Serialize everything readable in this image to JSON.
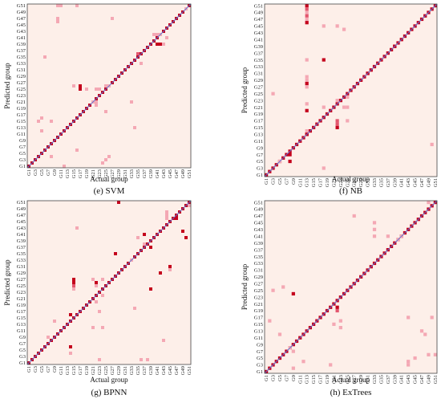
{
  "colors": {
    "background": "#fdefe9",
    "diagonal_line": "#5a73d6",
    "frame": "#444444",
    "cell_light": "#f4a8b4",
    "cell_mid": "#e3566e",
    "cell_dark": "#c4001c"
  },
  "chart_data": [
    {
      "type": "heatmap",
      "caption": "(e) SVM",
      "xlabel": "Actual group",
      "ylabel": "Predicted group",
      "groups": 51,
      "x_tick_labels": [
        "G1",
        "G3",
        "G5",
        "G7",
        "G9",
        "G11",
        "G13",
        "G15",
        "G17",
        "G19",
        "G21",
        "G23",
        "G25",
        "G27",
        "G29",
        "G31",
        "G33",
        "G35",
        "G37",
        "G39",
        "G41",
        "G43",
        "G45",
        "G47",
        "G49",
        "G51"
      ],
      "y_tick_labels": [
        "G1",
        "G3",
        "G5",
        "G7",
        "G9",
        "G11",
        "G13",
        "G15",
        "G17",
        "G19",
        "G21",
        "G23",
        "G25",
        "G27",
        "G29",
        "G31",
        "G33",
        "G35",
        "G37",
        "G39",
        "G41",
        "G43",
        "G45",
        "G47",
        "G49",
        "G51"
      ],
      "off_diagonal": [
        {
          "actual": 10,
          "predicted": 51,
          "level": 1
        },
        {
          "actual": 11,
          "predicted": 51,
          "level": 1
        },
        {
          "actual": 10,
          "predicted": 47,
          "level": 1
        },
        {
          "actual": 10,
          "predicted": 46,
          "level": 1
        },
        {
          "actual": 16,
          "predicted": 51,
          "level": 1
        },
        {
          "actual": 27,
          "predicted": 47,
          "level": 1
        },
        {
          "actual": 6,
          "predicted": 35,
          "level": 1
        },
        {
          "actual": 40,
          "predicted": 42,
          "level": 1
        },
        {
          "actual": 41,
          "predicted": 42,
          "level": 1
        },
        {
          "actual": 42,
          "predicted": 42,
          "level": 1
        },
        {
          "actual": 41,
          "predicted": 39,
          "level": 3
        },
        {
          "actual": 42,
          "predicted": 39,
          "level": 3
        },
        {
          "actual": 43,
          "predicted": 39,
          "level": 1
        },
        {
          "actual": 44,
          "predicted": 41,
          "level": 1
        },
        {
          "actual": 50,
          "predicted": 50,
          "level": 1
        },
        {
          "actual": 35,
          "predicted": 36,
          "level": 2
        },
        {
          "actual": 36,
          "predicted": 33,
          "level": 1
        },
        {
          "actual": 15,
          "predicted": 26,
          "level": 1
        },
        {
          "actual": 17,
          "predicted": 26,
          "level": 3
        },
        {
          "actual": 17,
          "predicted": 25,
          "level": 3
        },
        {
          "actual": 19,
          "predicted": 25,
          "level": 1
        },
        {
          "actual": 22,
          "predicted": 25,
          "level": 1
        },
        {
          "actual": 23,
          "predicted": 25,
          "level": 1
        },
        {
          "actual": 25,
          "predicted": 26,
          "level": 1
        },
        {
          "actual": 26,
          "predicted": 26,
          "level": 1
        },
        {
          "actual": 21,
          "predicted": 21,
          "level": 1
        },
        {
          "actual": 22,
          "predicted": 21,
          "level": 1
        },
        {
          "actual": 33,
          "predicted": 21,
          "level": 1
        },
        {
          "actual": 22,
          "predicted": 20,
          "level": 1
        },
        {
          "actual": 25,
          "predicted": 18,
          "level": 1
        },
        {
          "actual": 5,
          "predicted": 16,
          "level": 1
        },
        {
          "actual": 4,
          "predicted": 15,
          "level": 1
        },
        {
          "actual": 8,
          "predicted": 15,
          "level": 1
        },
        {
          "actual": 5,
          "predicted": 12,
          "level": 1
        },
        {
          "actual": 34,
          "predicted": 13,
          "level": 1
        },
        {
          "actual": 16,
          "predicted": 6,
          "level": 1
        },
        {
          "actual": 25,
          "predicted": 3,
          "level": 1
        },
        {
          "actual": 26,
          "predicted": 4,
          "level": 1
        },
        {
          "actual": 24,
          "predicted": 2,
          "level": 1
        },
        {
          "actual": 12,
          "predicted": 1,
          "level": 1
        },
        {
          "actual": 8,
          "predicted": 4,
          "level": 1
        },
        {
          "actual": 9,
          "predicted": 9,
          "level": 3
        }
      ]
    },
    {
      "type": "heatmap",
      "caption": "(f) NB",
      "xlabel": "Actual group",
      "ylabel": "Predicted group",
      "groups": 51,
      "x_tick_labels": [
        "G1",
        "G3",
        "G5",
        "G7",
        "G9",
        "G11",
        "G13",
        "G15",
        "G17",
        "G19",
        "G21",
        "G23",
        "G25",
        "G27",
        "G29",
        "G31",
        "G33",
        "G35",
        "G37",
        "G39",
        "G41",
        "G43",
        "G45",
        "G47",
        "G49",
        "G51"
      ],
      "y_tick_labels": [
        "G1",
        "G3",
        "G5",
        "G7",
        "G9",
        "G11",
        "G13",
        "G15",
        "G17",
        "G19",
        "G21",
        "G23",
        "G25",
        "G27",
        "G29",
        "G31",
        "G33",
        "G35",
        "G37",
        "G39",
        "G41",
        "G43",
        "G45",
        "G47",
        "G49",
        "G51"
      ],
      "off_diagonal": [
        {
          "actual": 13,
          "predicted": 51,
          "level": 3
        },
        {
          "actual": 13,
          "predicted": 50,
          "level": 2
        },
        {
          "actual": 13,
          "predicted": 49,
          "level": 1
        },
        {
          "actual": 13,
          "predicted": 48,
          "level": 2
        },
        {
          "actual": 13,
          "predicted": 47,
          "level": 1
        },
        {
          "actual": 13,
          "predicted": 46,
          "level": 3
        },
        {
          "actual": 13,
          "predicted": 35,
          "level": 1
        },
        {
          "actual": 13,
          "predicted": 30,
          "level": 1
        },
        {
          "actual": 13,
          "predicted": 29,
          "level": 1
        },
        {
          "actual": 13,
          "predicted": 28,
          "level": 3
        },
        {
          "actual": 13,
          "predicted": 27,
          "level": 1
        },
        {
          "actual": 13,
          "predicted": 22,
          "level": 1
        },
        {
          "actual": 13,
          "predicted": 20,
          "level": 3
        },
        {
          "actual": 13,
          "predicted": 14,
          "level": 1
        },
        {
          "actual": 13,
          "predicted": 13,
          "level": 3
        },
        {
          "actual": 18,
          "predicted": 35,
          "level": 3
        },
        {
          "actual": 18,
          "predicted": 45,
          "level": 1
        },
        {
          "actual": 22,
          "predicted": 45,
          "level": 1
        },
        {
          "actual": 24,
          "predicted": 44,
          "level": 1
        },
        {
          "actual": 22,
          "predicted": 23,
          "level": 1
        },
        {
          "actual": 22,
          "predicted": 17,
          "level": 2
        },
        {
          "actual": 22,
          "predicted": 16,
          "level": 2
        },
        {
          "actual": 22,
          "predicted": 15,
          "level": 3
        },
        {
          "actual": 18,
          "predicted": 21,
          "level": 1
        },
        {
          "actual": 24,
          "predicted": 21,
          "level": 1
        },
        {
          "actual": 25,
          "predicted": 21,
          "level": 1
        },
        {
          "actual": 25,
          "predicted": 17,
          "level": 1
        },
        {
          "actual": 25,
          "predicted": 24,
          "level": 1
        },
        {
          "actual": 3,
          "predicted": 25,
          "level": 1
        },
        {
          "actual": 5,
          "predicted": 5,
          "level": 1
        },
        {
          "actual": 8,
          "predicted": 5,
          "level": 3
        },
        {
          "actual": 8,
          "predicted": 7,
          "level": 3
        },
        {
          "actual": 18,
          "predicted": 3,
          "level": 1
        },
        {
          "actual": 50,
          "predicted": 10,
          "level": 1
        },
        {
          "actual": 39,
          "predicted": 39,
          "level": 3
        },
        {
          "actual": 31,
          "predicted": 31,
          "level": 3
        }
      ]
    },
    {
      "type": "heatmap",
      "caption": "(g) BPNN",
      "xlabel": "Actual group",
      "ylabel": "Predicted group",
      "groups": 51,
      "x_tick_labels": [
        "G1",
        "G3",
        "G5",
        "G7",
        "G9",
        "G11",
        "G13",
        "G15",
        "G17",
        "G19",
        "G21",
        "G23",
        "G25",
        "G27",
        "G29",
        "G31",
        "G33",
        "G35",
        "G37",
        "G39",
        "G41",
        "G43",
        "G45",
        "G47",
        "G49",
        "G51"
      ],
      "y_tick_labels": [
        "G1",
        "G3",
        "G5",
        "G7",
        "G9",
        "G11",
        "G13",
        "G15",
        "G17",
        "G19",
        "G21",
        "G23",
        "G25",
        "G27",
        "G29",
        "G31",
        "G33",
        "G35",
        "G37",
        "G39",
        "G41",
        "G43",
        "G45",
        "G47",
        "G49",
        "G51"
      ],
      "off_diagonal": [
        {
          "actual": 29,
          "predicted": 51,
          "level": 3
        },
        {
          "actual": 44,
          "predicted": 48,
          "level": 1
        },
        {
          "actual": 44,
          "predicted": 47,
          "level": 1
        },
        {
          "actual": 44,
          "predicted": 46,
          "level": 1
        },
        {
          "actual": 47,
          "predicted": 46,
          "level": 3
        },
        {
          "actual": 49,
          "predicted": 42,
          "level": 3
        },
        {
          "actual": 50,
          "predicted": 40,
          "level": 3
        },
        {
          "actual": 51,
          "predicted": 50,
          "level": 1
        },
        {
          "actual": 16,
          "predicted": 43,
          "level": 1
        },
        {
          "actual": 35,
          "predicted": 40,
          "level": 1
        },
        {
          "actual": 37,
          "predicted": 41,
          "level": 3
        },
        {
          "actual": 37,
          "predicted": 38,
          "level": 1
        },
        {
          "actual": 39,
          "predicted": 37,
          "level": 3
        },
        {
          "actual": 28,
          "predicted": 35,
          "level": 3
        },
        {
          "actual": 33,
          "predicted": 33,
          "level": 1
        },
        {
          "actual": 45,
          "predicted": 31,
          "level": 3
        },
        {
          "actual": 45,
          "predicted": 30,
          "level": 1
        },
        {
          "actual": 42,
          "predicted": 29,
          "level": 3
        },
        {
          "actual": 39,
          "predicted": 24,
          "level": 3
        },
        {
          "actual": 15,
          "predicted": 27,
          "level": 3
        },
        {
          "actual": 15,
          "predicted": 26,
          "level": 3
        },
        {
          "actual": 15,
          "predicted": 25,
          "level": 2
        },
        {
          "actual": 15,
          "predicted": 24,
          "level": 1
        },
        {
          "actual": 21,
          "predicted": 27,
          "level": 1
        },
        {
          "actual": 22,
          "predicted": 26,
          "level": 3
        },
        {
          "actual": 22,
          "predicted": 25,
          "level": 1
        },
        {
          "actual": 24,
          "predicted": 27,
          "level": 1
        },
        {
          "actual": 24,
          "predicted": 22,
          "level": 1
        },
        {
          "actual": 22,
          "predicted": 20,
          "level": 1
        },
        {
          "actual": 23,
          "predicted": 17,
          "level": 1
        },
        {
          "actual": 34,
          "predicted": 18,
          "level": 1
        },
        {
          "actual": 14,
          "predicted": 16,
          "level": 3
        },
        {
          "actual": 9,
          "predicted": 14,
          "level": 1
        },
        {
          "actual": 7,
          "predicted": 9,
          "level": 1
        },
        {
          "actual": 21,
          "predicted": 12,
          "level": 1
        },
        {
          "actual": 24,
          "predicted": 12,
          "level": 1
        },
        {
          "actual": 14,
          "predicted": 6,
          "level": 3
        },
        {
          "actual": 14,
          "predicted": 4,
          "level": 1
        },
        {
          "actual": 23,
          "predicted": 2,
          "level": 1
        },
        {
          "actual": 36,
          "predicted": 2,
          "level": 1
        },
        {
          "actual": 38,
          "predicted": 2,
          "level": 1
        },
        {
          "actual": 43,
          "predicted": 8,
          "level": 1
        }
      ]
    },
    {
      "type": "heatmap",
      "caption": "(h) ExTrees",
      "xlabel": "Actual group",
      "ylabel": "Predicted group",
      "groups": 51,
      "x_tick_labels": [
        "G1",
        "G3",
        "G5",
        "G7",
        "G9",
        "G11",
        "G13",
        "G15",
        "G17",
        "G19",
        "G21",
        "G23",
        "G25",
        "G27",
        "G29",
        "G31",
        "G33",
        "G35",
        "G37",
        "G39",
        "G41",
        "G43",
        "G45",
        "G47",
        "G49",
        "G51"
      ],
      "y_tick_labels": [
        "G1",
        "G3",
        "G5",
        "G7",
        "G9",
        "G11",
        "G13",
        "G15",
        "G17",
        "G19",
        "G21",
        "G23",
        "G25",
        "G27",
        "G29",
        "G31",
        "G33",
        "G35",
        "G37",
        "G39",
        "G41",
        "G43",
        "G45",
        "G47",
        "G49",
        "G51"
      ],
      "off_diagonal": [
        {
          "actual": 49,
          "predicted": 51,
          "level": 1
        },
        {
          "actual": 27,
          "predicted": 47,
          "level": 1
        },
        {
          "actual": 33,
          "predicted": 45,
          "level": 1
        },
        {
          "actual": 33,
          "predicted": 43,
          "level": 1
        },
        {
          "actual": 33,
          "predicted": 41,
          "level": 1
        },
        {
          "actual": 37,
          "predicted": 41,
          "level": 1
        },
        {
          "actual": 41,
          "predicted": 41,
          "level": 1
        },
        {
          "actual": 40,
          "predicted": 40,
          "level": 1
        },
        {
          "actual": 3,
          "predicted": 25,
          "level": 1
        },
        {
          "actual": 6,
          "predicted": 26,
          "level": 1
        },
        {
          "actual": 9,
          "predicted": 24,
          "level": 3
        },
        {
          "actual": 2,
          "predicted": 16,
          "level": 1
        },
        {
          "actual": 5,
          "predicted": 12,
          "level": 1
        },
        {
          "actual": 22,
          "predicted": 20,
          "level": 3
        },
        {
          "actual": 22,
          "predicted": 19,
          "level": 2
        },
        {
          "actual": 23,
          "predicted": 16,
          "level": 1
        },
        {
          "actual": 23,
          "predicted": 14,
          "level": 1
        },
        {
          "actual": 21,
          "predicted": 15,
          "level": 1
        },
        {
          "actual": 8,
          "predicted": 8,
          "level": 1
        },
        {
          "actual": 9,
          "predicted": 7,
          "level": 1
        },
        {
          "actual": 9,
          "predicted": 2,
          "level": 1
        },
        {
          "actual": 12,
          "predicted": 4,
          "level": 1
        },
        {
          "actual": 20,
          "predicted": 3,
          "level": 1
        },
        {
          "actual": 43,
          "predicted": 4,
          "level": 1
        },
        {
          "actual": 43,
          "predicted": 3,
          "level": 1
        },
        {
          "actual": 45,
          "predicted": 5,
          "level": 1
        },
        {
          "actual": 49,
          "predicted": 6,
          "level": 1
        },
        {
          "actual": 51,
          "predicted": 6,
          "level": 1
        },
        {
          "actual": 43,
          "predicted": 17,
          "level": 1
        },
        {
          "actual": 47,
          "predicted": 13,
          "level": 1
        },
        {
          "actual": 48,
          "predicted": 12,
          "level": 1
        },
        {
          "actual": 50,
          "predicted": 17,
          "level": 1
        }
      ]
    }
  ]
}
